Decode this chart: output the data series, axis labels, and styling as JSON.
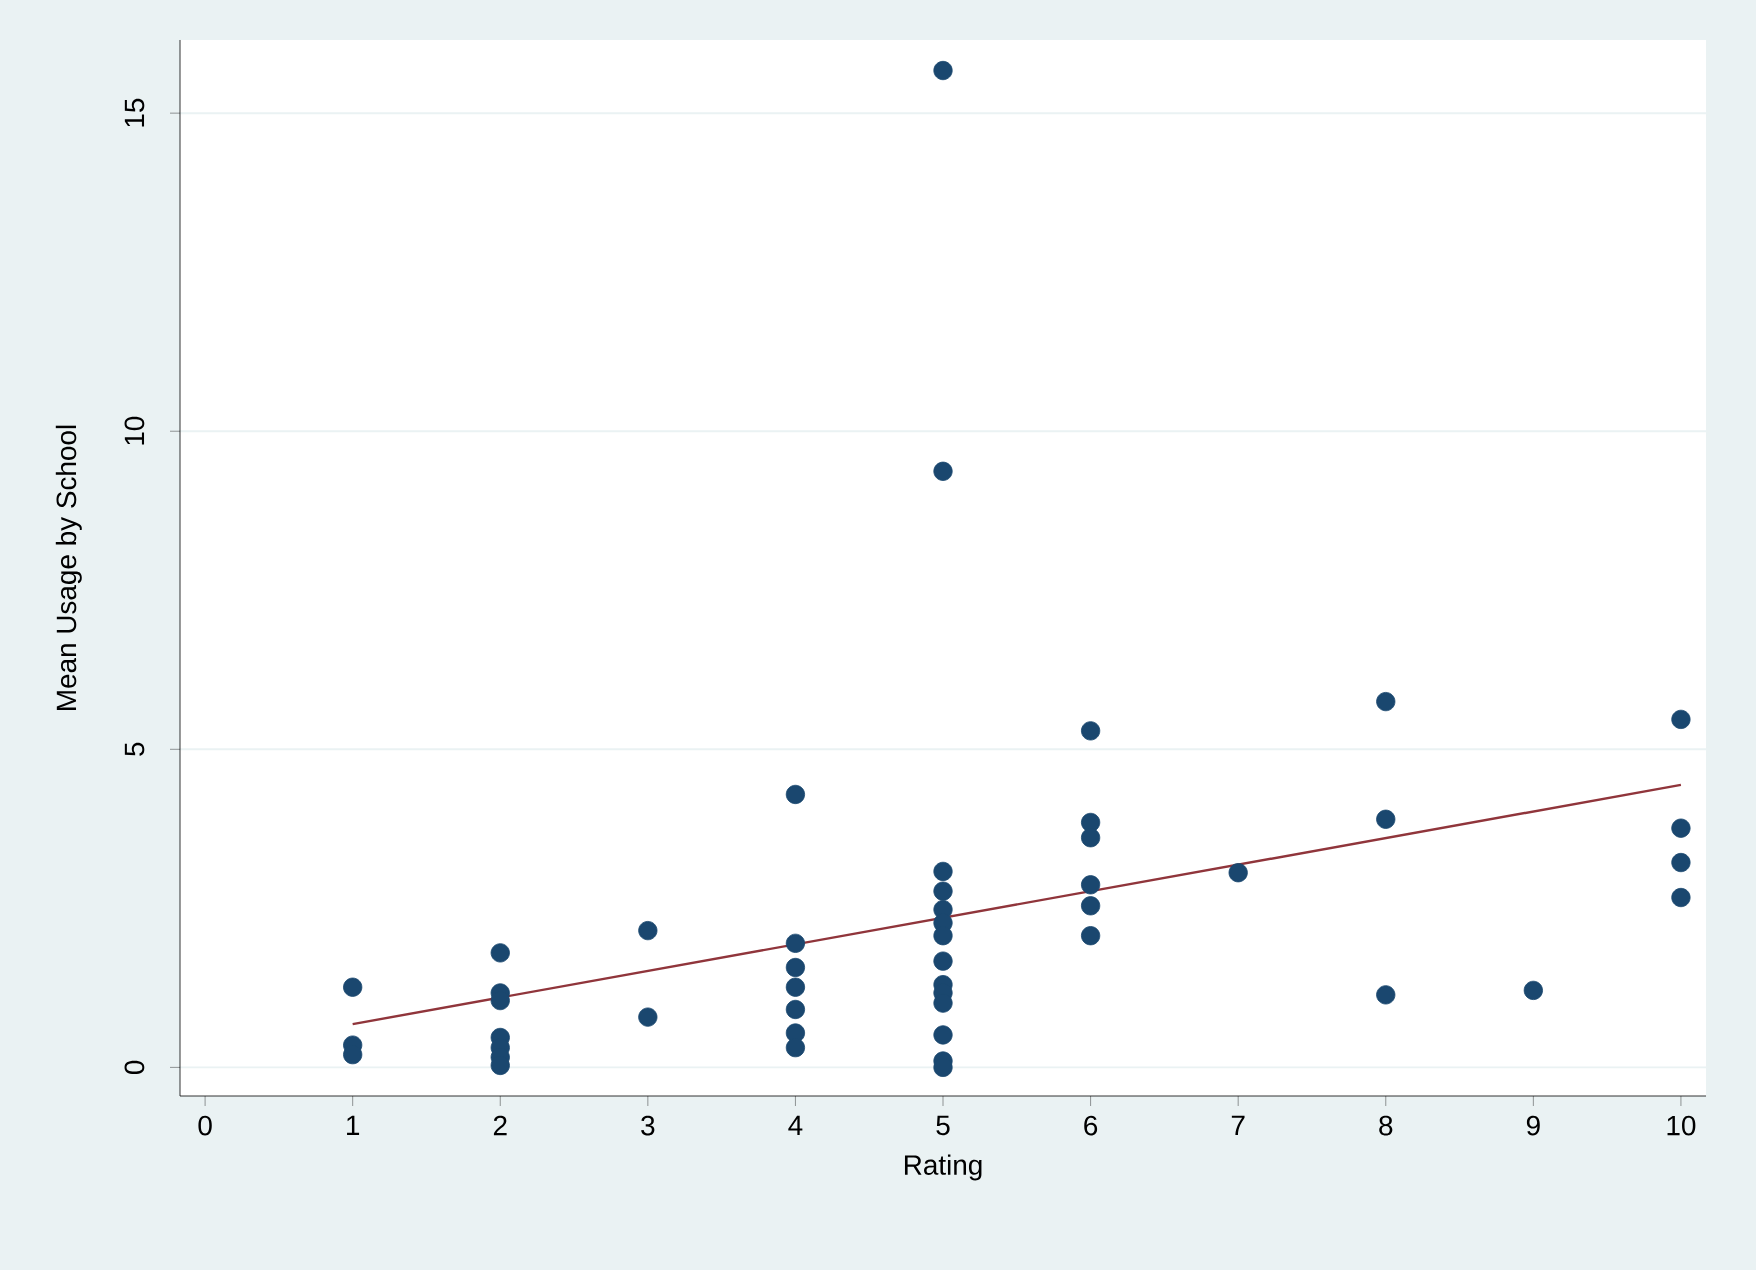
{
  "chart_data": {
    "type": "scatter",
    "xlabel": "Rating",
    "ylabel": "Mean Usage by School",
    "xlim": [
      -0.17,
      10.17
    ],
    "ylim": [
      -0.45,
      16.15
    ],
    "xticks": [
      0,
      1,
      2,
      3,
      4,
      5,
      6,
      7,
      8,
      9,
      10
    ],
    "yticks": [
      0,
      5,
      10,
      15
    ],
    "grid": "y",
    "marker": "circle",
    "series": [
      {
        "color": "#1a476f",
        "x": [
          1,
          1,
          1,
          2,
          2,
          2,
          2,
          2,
          2,
          2,
          3,
          3,
          4,
          4,
          4,
          4,
          4,
          4,
          4,
          5,
          5,
          5,
          5,
          5,
          5,
          5,
          5,
          5,
          5,
          5,
          5,
          5,
          5,
          6,
          6,
          6,
          6,
          6,
          6,
          7,
          8,
          8,
          8,
          9,
          10,
          10,
          10,
          10
        ],
        "values": [
          1.26,
          0.35,
          0.2,
          1.8,
          1.17,
          1.05,
          0.47,
          0.31,
          0.16,
          0.03,
          2.15,
          0.79,
          4.29,
          1.95,
          1.57,
          1.26,
          0.91,
          0.54,
          0.31,
          15.67,
          9.37,
          3.08,
          2.77,
          2.48,
          2.27,
          2.07,
          1.67,
          1.3,
          1.17,
          1.01,
          0.51,
          0.1,
          0.0,
          5.29,
          3.85,
          3.61,
          2.87,
          2.54,
          2.07,
          3.06,
          5.75,
          3.9,
          1.14,
          1.21,
          5.47,
          3.76,
          3.22,
          2.67
        ]
      },
      {
        "type": "line",
        "color": "#90353b",
        "marker": "none",
        "x": [
          1,
          10
        ],
        "values": [
          0.68,
          4.44
        ]
      }
    ]
  }
}
